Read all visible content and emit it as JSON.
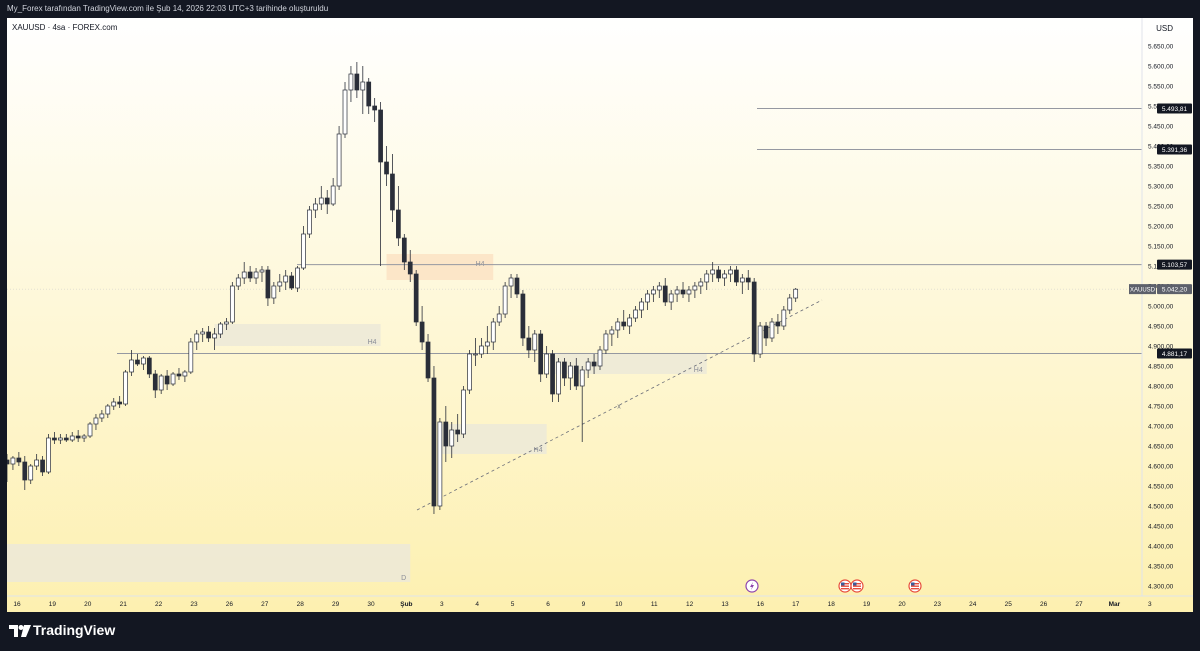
{
  "header": {
    "caption": "My_Forex tarafından TradingView.com ile Şub 14, 2026 22:03 UTC+3 tarihinde oluşturuldu"
  },
  "chart_header": {
    "symbol": "XAUUSD · 4sa · FOREX.com",
    "currency": "USD"
  },
  "brand": {
    "name": "TradingView"
  },
  "colors": {
    "bg_top": "#ffffff",
    "bg_bottom": "#fdf0b0",
    "candle": "#2a2e39",
    "zone_gray": "#ece9d8",
    "zone_orange": "#fce3c4",
    "level_line": "#9598a1",
    "trend_line": "#6a6d78",
    "price_tag_bg": "#131722",
    "symbol_tag_bg": "#5d606b",
    "event_purple": "#8e44ad",
    "event_us": "#e74c3c"
  },
  "chart_data": {
    "type": "candlestick",
    "symbol": "XAUUSD",
    "timeframe": "4sa",
    "ylim": [
      4280,
      5720
    ],
    "y_ticks": [
      "5.650,00",
      "5.600,00",
      "5.550,00",
      "5.500,00",
      "5.450,00",
      "5.400,00",
      "5.350,00",
      "5.300,00",
      "5.250,00",
      "5.200,00",
      "5.150,00",
      "5.100,00",
      "5.050,00",
      "5.000,00",
      "4.950,00",
      "4.900,00",
      "4.850,00",
      "4.800,00",
      "4.750,00",
      "4.700,00",
      "4.650,00",
      "4.600,00",
      "4.550,00",
      "4.500,00",
      "4.450,00",
      "4.400,00",
      "4.350,00",
      "4.300,00"
    ],
    "x_ticks": [
      "16",
      "19",
      "20",
      "21",
      "22",
      "23",
      "26",
      "27",
      "28",
      "29",
      "30",
      "Şub",
      "3",
      "4",
      "5",
      "6",
      "9",
      "10",
      "11",
      "12",
      "13",
      "16",
      "17",
      "18",
      "19",
      "20",
      "23",
      "24",
      "25",
      "26",
      "27",
      "Mar",
      "3"
    ],
    "price_levels": [
      {
        "label": "5.493,81",
        "value": 5493.81
      },
      {
        "label": "5.391,36",
        "value": 5391.36
      },
      {
        "label": "5.103,57",
        "value": 5103.57
      },
      {
        "label": "4.881,17",
        "value": 4881.17
      }
    ],
    "current_price": {
      "symbol": "XAUUSD",
      "label": "5.042,20",
      "value": 5042.2
    },
    "zones": [
      {
        "label": "D",
        "price_top": 4405,
        "price_bottom": 4310,
        "tf": "D"
      },
      {
        "label": "H4",
        "price_top": 4955,
        "price_bottom": 4900,
        "tf": "H4"
      },
      {
        "label": "H4",
        "price_top": 5130,
        "price_bottom": 5065,
        "tf": "H4"
      },
      {
        "label": "H4",
        "price_top": 4705,
        "price_bottom": 4630,
        "tf": "H4"
      },
      {
        "label": "H4",
        "price_top": 4880,
        "price_bottom": 4830,
        "tf": "H4"
      }
    ],
    "trend_line": {
      "mark": "x",
      "start_price": 4490,
      "end_price": 5015
    },
    "events": [
      "lightning",
      "us",
      "us",
      "us"
    ],
    "candles": [
      [
        4615,
        4630,
        4560,
        4605
      ],
      [
        4605,
        4625,
        4590,
        4620
      ],
      [
        4620,
        4635,
        4600,
        4610
      ],
      [
        4610,
        4625,
        4540,
        4565
      ],
      [
        4565,
        4605,
        4555,
        4600
      ],
      [
        4600,
        4630,
        4590,
        4615
      ],
      [
        4615,
        4625,
        4575,
        4585
      ],
      [
        4585,
        4680,
        4580,
        4670
      ],
      [
        4670,
        4685,
        4655,
        4665
      ],
      [
        4665,
        4680,
        4655,
        4670
      ],
      [
        4670,
        4680,
        4660,
        4665
      ],
      [
        4665,
        4685,
        4660,
        4675
      ],
      [
        4675,
        4690,
        4660,
        4670
      ],
      [
        4670,
        4680,
        4660,
        4675
      ],
      [
        4675,
        4710,
        4670,
        4705
      ],
      [
        4705,
        4730,
        4690,
        4720
      ],
      [
        4720,
        4740,
        4710,
        4730
      ],
      [
        4730,
        4755,
        4720,
        4750
      ],
      [
        4750,
        4770,
        4740,
        4760
      ],
      [
        4760,
        4775,
        4745,
        4755
      ],
      [
        4755,
        4840,
        4750,
        4835
      ],
      [
        4835,
        4890,
        4825,
        4865
      ],
      [
        4865,
        4880,
        4850,
        4855
      ],
      [
        4855,
        4875,
        4840,
        4870
      ],
      [
        4870,
        4875,
        4820,
        4830
      ],
      [
        4830,
        4840,
        4770,
        4790
      ],
      [
        4790,
        4830,
        4780,
        4825
      ],
      [
        4825,
        4840,
        4790,
        4805
      ],
      [
        4805,
        4835,
        4800,
        4830
      ],
      [
        4830,
        4845,
        4815,
        4825
      ],
      [
        4825,
        4840,
        4810,
        4835
      ],
      [
        4835,
        4920,
        4830,
        4910
      ],
      [
        4910,
        4940,
        4890,
        4930
      ],
      [
        4930,
        4945,
        4910,
        4935
      ],
      [
        4935,
        4950,
        4910,
        4920
      ],
      [
        4920,
        4945,
        4890,
        4930
      ],
      [
        4930,
        4960,
        4920,
        4955
      ],
      [
        4955,
        4970,
        4940,
        4960
      ],
      [
        4960,
        5060,
        4955,
        5050
      ],
      [
        5050,
        5080,
        5040,
        5070
      ],
      [
        5070,
        5110,
        5055,
        5085
      ],
      [
        5085,
        5100,
        5060,
        5070
      ],
      [
        5070,
        5095,
        5055,
        5085
      ],
      [
        5085,
        5100,
        5060,
        5090
      ],
      [
        5090,
        5100,
        5000,
        5020
      ],
      [
        5020,
        5060,
        5005,
        5050
      ],
      [
        5050,
        5080,
        5035,
        5060
      ],
      [
        5060,
        5090,
        5040,
        5075
      ],
      [
        5075,
        5085,
        5040,
        5045
      ],
      [
        5045,
        5100,
        5035,
        5095
      ],
      [
        5095,
        5200,
        5090,
        5180
      ],
      [
        5180,
        5250,
        5170,
        5240
      ],
      [
        5240,
        5270,
        5220,
        5255
      ],
      [
        5255,
        5300,
        5240,
        5270
      ],
      [
        5270,
        5290,
        5230,
        5255
      ],
      [
        5255,
        5320,
        5250,
        5300
      ],
      [
        5300,
        5450,
        5290,
        5430
      ],
      [
        5430,
        5560,
        5420,
        5540
      ],
      [
        5540,
        5600,
        5510,
        5580
      ],
      [
        5580,
        5610,
        5520,
        5540
      ],
      [
        5540,
        5600,
        5480,
        5560
      ],
      [
        5560,
        5570,
        5480,
        5500
      ],
      [
        5500,
        5520,
        5460,
        5490
      ],
      [
        5490,
        5510,
        5100,
        5360
      ],
      [
        5360,
        5400,
        5300,
        5330
      ],
      [
        5330,
        5380,
        5210,
        5240
      ],
      [
        5240,
        5300,
        5150,
        5170
      ],
      [
        5170,
        5180,
        5090,
        5110
      ],
      [
        5110,
        5140,
        5060,
        5080
      ],
      [
        5080,
        5090,
        4950,
        4960
      ],
      [
        4960,
        5000,
        4890,
        4910
      ],
      [
        4910,
        4930,
        4810,
        4820
      ],
      [
        4820,
        4850,
        4480,
        4500
      ],
      [
        4500,
        4720,
        4490,
        4710
      ],
      [
        4710,
        4750,
        4610,
        4650
      ],
      [
        4650,
        4710,
        4620,
        4690
      ],
      [
        4690,
        4730,
        4660,
        4680
      ],
      [
        4680,
        4800,
        4670,
        4790
      ],
      [
        4790,
        4890,
        4780,
        4880
      ],
      [
        4880,
        4920,
        4850,
        4880
      ],
      [
        4880,
        4920,
        4870,
        4900
      ],
      [
        4900,
        4950,
        4880,
        4910
      ],
      [
        4910,
        4970,
        4890,
        4960
      ],
      [
        4960,
        5000,
        4950,
        4980
      ],
      [
        4980,
        5060,
        4970,
        5050
      ],
      [
        5050,
        5080,
        5020,
        5070
      ],
      [
        5070,
        5080,
        5020,
        5030
      ],
      [
        5030,
        5040,
        4900,
        4920
      ],
      [
        4920,
        4950,
        4870,
        4890
      ],
      [
        4890,
        4940,
        4860,
        4930
      ],
      [
        4930,
        4940,
        4810,
        4830
      ],
      [
        4830,
        4900,
        4820,
        4880
      ],
      [
        4880,
        4890,
        4760,
        4780
      ],
      [
        4780,
        4870,
        4760,
        4860
      ],
      [
        4860,
        4870,
        4800,
        4820
      ],
      [
        4820,
        4860,
        4790,
        4850
      ],
      [
        4850,
        4870,
        4790,
        4800
      ],
      [
        4800,
        4850,
        4660,
        4840
      ],
      [
        4840,
        4870,
        4820,
        4860
      ],
      [
        4860,
        4880,
        4830,
        4850
      ],
      [
        4850,
        4900,
        4840,
        4890
      ],
      [
        4890,
        4940,
        4880,
        4930
      ],
      [
        4930,
        4950,
        4900,
        4940
      ],
      [
        4940,
        4970,
        4920,
        4960
      ],
      [
        4960,
        4990,
        4940,
        4950
      ],
      [
        4950,
        4980,
        4930,
        4970
      ],
      [
        4970,
        5000,
        4960,
        4990
      ],
      [
        4990,
        5020,
        4970,
        5010
      ],
      [
        5010,
        5040,
        4990,
        5030
      ],
      [
        5030,
        5050,
        5010,
        5040
      ],
      [
        5040,
        5060,
        5020,
        5050
      ],
      [
        5050,
        5070,
        5000,
        5010
      ],
      [
        5010,
        5040,
        4990,
        5030
      ],
      [
        5030,
        5050,
        5010,
        5040
      ],
      [
        5040,
        5060,
        5020,
        5030
      ],
      [
        5030,
        5050,
        5010,
        5040
      ],
      [
        5040,
        5060,
        5020,
        5050
      ],
      [
        5050,
        5070,
        5030,
        5060
      ],
      [
        5060,
        5090,
        5040,
        5080
      ],
      [
        5080,
        5110,
        5060,
        5090
      ],
      [
        5090,
        5100,
        5060,
        5070
      ],
      [
        5070,
        5090,
        5050,
        5080
      ],
      [
        5080,
        5100,
        5060,
        5090
      ],
      [
        5090,
        5100,
        5050,
        5060
      ],
      [
        5060,
        5080,
        5030,
        5070
      ],
      [
        5070,
        5090,
        5040,
        5060
      ],
      [
        5060,
        5070,
        4860,
        4880
      ],
      [
        4880,
        4960,
        4870,
        4950
      ],
      [
        4950,
        4960,
        4900,
        4920
      ],
      [
        4920,
        4970,
        4910,
        4960
      ],
      [
        4960,
        4980,
        4930,
        4950
      ],
      [
        4950,
        5000,
        4940,
        4990
      ],
      [
        4990,
        5030,
        4980,
        5020
      ],
      [
        5020,
        5045,
        5010,
        5042
      ]
    ]
  }
}
